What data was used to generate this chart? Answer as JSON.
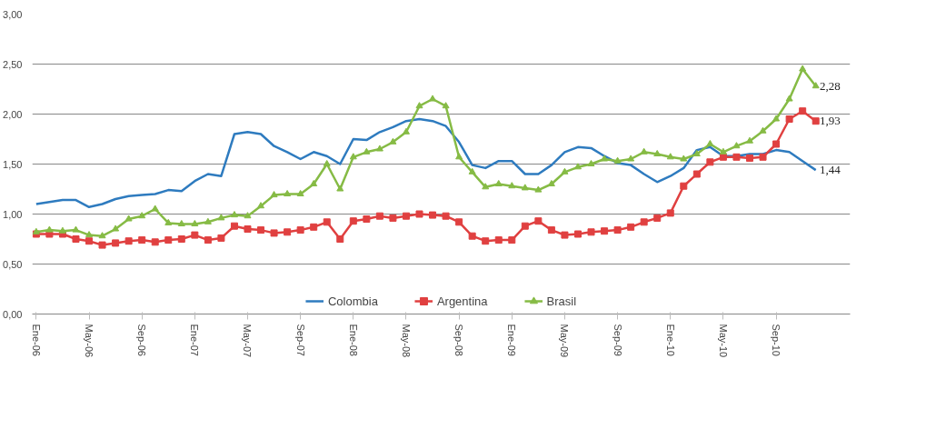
{
  "chart_data": {
    "type": "line",
    "categories": [
      "Ene-06",
      null,
      null,
      null,
      "May-06",
      null,
      null,
      null,
      "Sep-06",
      null,
      null,
      null,
      "Ene-07",
      null,
      null,
      null,
      "May-07",
      null,
      null,
      null,
      "Sep-07",
      null,
      null,
      null,
      "Ene-08",
      null,
      null,
      null,
      "May-08",
      null,
      null,
      null,
      "Sep-08",
      null,
      null,
      null,
      "Ene-09",
      null,
      null,
      null,
      "May-09",
      null,
      null,
      null,
      "Sep-09",
      null,
      null,
      null,
      "Ene-10",
      null,
      null,
      null,
      "May-10",
      null,
      null,
      null,
      "Sep-10",
      null,
      null,
      null
    ],
    "series": [
      {
        "name": "Colombia",
        "color": "#2e7bbf",
        "marker": "none",
        "values": [
          1.1,
          1.12,
          1.14,
          1.14,
          1.07,
          1.1,
          1.15,
          1.18,
          1.19,
          1.2,
          1.24,
          1.23,
          1.33,
          1.4,
          1.38,
          1.8,
          1.82,
          1.8,
          1.68,
          1.62,
          1.55,
          1.62,
          1.58,
          1.5,
          1.75,
          1.74,
          1.82,
          1.87,
          1.93,
          1.95,
          1.93,
          1.88,
          1.72,
          1.49,
          1.46,
          1.53,
          1.53,
          1.4,
          1.4,
          1.49,
          1.62,
          1.67,
          1.66,
          1.58,
          1.51,
          1.49,
          1.4,
          1.32,
          1.38,
          1.46,
          1.64,
          1.67,
          1.58,
          1.58,
          1.6,
          1.6,
          1.64,
          1.62,
          1.53,
          1.44
        ],
        "value_labels": [
          null,
          null,
          null,
          null,
          null,
          null,
          null,
          null,
          null,
          null,
          null,
          null,
          null,
          null,
          null,
          null,
          null,
          null,
          null,
          null,
          null,
          null,
          null,
          null,
          null,
          null,
          null,
          null,
          null,
          null,
          null,
          null,
          null,
          null,
          null,
          null,
          null,
          null,
          null,
          null,
          null,
          null,
          null,
          null,
          null,
          null,
          null,
          null,
          null,
          null,
          null,
          null,
          null,
          null,
          null,
          null,
          null,
          null,
          null,
          "1,44"
        ]
      },
      {
        "name": "Argentina",
        "color": "#e04040",
        "marker": "square",
        "values": [
          0.8,
          0.8,
          0.8,
          0.75,
          0.73,
          0.69,
          0.71,
          0.73,
          0.74,
          0.72,
          0.74,
          0.75,
          0.79,
          0.74,
          0.76,
          0.88,
          0.85,
          0.84,
          0.81,
          0.82,
          0.84,
          0.87,
          0.92,
          0.75,
          0.93,
          0.95,
          0.98,
          0.96,
          0.98,
          1.0,
          0.99,
          0.98,
          0.92,
          0.78,
          0.73,
          0.74,
          0.74,
          0.88,
          0.93,
          0.84,
          0.79,
          0.8,
          0.82,
          0.83,
          0.84,
          0.87,
          0.92,
          0.96,
          1.01,
          1.28,
          1.4,
          1.52,
          1.57,
          1.57,
          1.56,
          1.57,
          1.7,
          1.95,
          2.03,
          1.93
        ],
        "value_labels": [
          null,
          null,
          null,
          null,
          null,
          null,
          null,
          null,
          null,
          null,
          null,
          null,
          null,
          null,
          null,
          null,
          null,
          null,
          null,
          null,
          null,
          null,
          null,
          null,
          null,
          null,
          null,
          null,
          null,
          null,
          null,
          null,
          null,
          null,
          null,
          null,
          null,
          null,
          null,
          null,
          null,
          null,
          null,
          null,
          null,
          null,
          null,
          null,
          null,
          null,
          null,
          null,
          null,
          null,
          null,
          null,
          null,
          null,
          null,
          "1,93"
        ]
      },
      {
        "name": "Brasil",
        "color": "#86bb45",
        "marker": "triangle",
        "values": [
          0.82,
          0.84,
          0.83,
          0.84,
          0.79,
          0.78,
          0.85,
          0.95,
          0.98,
          1.05,
          0.91,
          0.9,
          0.9,
          0.92,
          0.96,
          0.99,
          0.98,
          1.08,
          1.19,
          1.2,
          1.2,
          1.3,
          1.5,
          1.25,
          1.57,
          1.62,
          1.65,
          1.72,
          1.82,
          2.08,
          2.15,
          2.08,
          1.57,
          1.42,
          1.27,
          1.3,
          1.28,
          1.26,
          1.24,
          1.3,
          1.42,
          1.47,
          1.5,
          1.55,
          1.53,
          1.55,
          1.62,
          1.6,
          1.57,
          1.55,
          1.6,
          1.7,
          1.62,
          1.68,
          1.73,
          1.83,
          1.95,
          2.15,
          2.45,
          2.28
        ],
        "value_labels": [
          null,
          null,
          null,
          null,
          null,
          null,
          null,
          null,
          null,
          null,
          null,
          null,
          null,
          null,
          null,
          null,
          null,
          null,
          null,
          null,
          null,
          null,
          null,
          null,
          null,
          null,
          null,
          null,
          null,
          null,
          null,
          null,
          null,
          null,
          null,
          null,
          null,
          null,
          null,
          null,
          null,
          null,
          null,
          null,
          null,
          null,
          null,
          null,
          null,
          null,
          null,
          null,
          null,
          null,
          null,
          null,
          null,
          null,
          null,
          "2,28"
        ]
      }
    ],
    "ylim": [
      0,
      3
    ],
    "yticks": [
      {
        "value": 0,
        "label": "0,00"
      },
      {
        "value": 0.5,
        "label": "0,50"
      },
      {
        "value": 1,
        "label": "1,00"
      },
      {
        "value": 1.5,
        "label": "1,50"
      },
      {
        "value": 2,
        "label": "2,00"
      },
      {
        "value": 2.5,
        "label": "2,50"
      },
      {
        "value": 3,
        "label": "3,00"
      }
    ],
    "grid": "y",
    "legend": "bottom",
    "line_style": "solid"
  }
}
